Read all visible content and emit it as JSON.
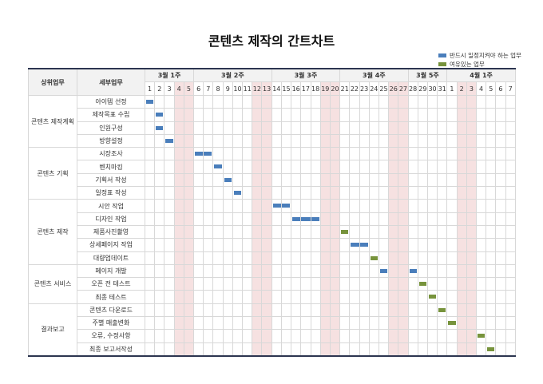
{
  "title": "콘텐츠 제작의 간트차트",
  "legend": [
    {
      "label": "반드시 일정지켜야 하는 업무",
      "type": "required",
      "color": "#4a7ebb"
    },
    {
      "label": "여유있는 업무",
      "type": "flexible",
      "color": "#77933c"
    }
  ],
  "chart_data": {
    "type": "gantt",
    "headers": {
      "group": "상위업무",
      "task": "세부업무"
    },
    "weeks": [
      {
        "label": "3월 1주",
        "days": 5
      },
      {
        "label": "3월 2주",
        "days": 8
      },
      {
        "label": "3월 3주",
        "days": 7
      },
      {
        "label": "3월 4주",
        "days": 7
      },
      {
        "label": "3월 5주",
        "days": 4
      },
      {
        "label": "4월 1주",
        "days": 7
      }
    ],
    "days": [
      "3/1",
      "3/2",
      "3/3",
      "3/4",
      "3/5",
      "3/6",
      "3/7",
      "3/8",
      "3/9",
      "3/10",
      "3/11",
      "3/12",
      "3/13",
      "3/14",
      "3/15",
      "3/16",
      "3/17",
      "3/18",
      "3/19",
      "3/20",
      "3/21",
      "3/22",
      "3/23",
      "3/24",
      "3/25",
      "3/26",
      "3/27",
      "3/28",
      "3/29",
      "3/30",
      "3/31",
      "4/1",
      "4/2",
      "4/3",
      "4/4",
      "4/5",
      "4/6",
      "4/7"
    ],
    "holidays": [
      "3/4",
      "3/5",
      "3/12",
      "3/13",
      "3/19",
      "3/20",
      "3/26",
      "3/27",
      "4/2",
      "4/3"
    ],
    "groups": [
      {
        "name": "콘텐츠 제작계획",
        "tasks": [
          {
            "name": "아이템 선정",
            "bars": [
              {
                "start": "3/1",
                "end": "3/1",
                "type": "required"
              }
            ]
          },
          {
            "name": "제작목표 수립",
            "bars": [
              {
                "start": "3/2",
                "end": "3/2",
                "type": "required"
              }
            ]
          },
          {
            "name": "인원구성",
            "bars": [
              {
                "start": "3/2",
                "end": "3/2",
                "type": "required"
              }
            ]
          },
          {
            "name": "방향설정",
            "bars": [
              {
                "start": "3/3",
                "end": "3/3",
                "type": "required"
              }
            ]
          }
        ]
      },
      {
        "name": "콘텐츠 기획",
        "tasks": [
          {
            "name": "시장조사",
            "bars": [
              {
                "start": "3/6",
                "end": "3/7",
                "type": "required"
              }
            ]
          },
          {
            "name": "벤치마킹",
            "bars": [
              {
                "start": "3/8",
                "end": "3/8",
                "type": "required"
              }
            ]
          },
          {
            "name": "기획서 작성",
            "bars": [
              {
                "start": "3/9",
                "end": "3/9",
                "type": "required"
              }
            ]
          },
          {
            "name": "일정표 작성",
            "bars": [
              {
                "start": "3/10",
                "end": "3/10",
                "type": "required"
              }
            ]
          }
        ]
      },
      {
        "name": "콘텐츠 제작",
        "tasks": [
          {
            "name": "시안 작업",
            "bars": [
              {
                "start": "3/14",
                "end": "3/15",
                "type": "required"
              }
            ]
          },
          {
            "name": "디자인 작업",
            "bars": [
              {
                "start": "3/16",
                "end": "3/18",
                "type": "required"
              }
            ]
          },
          {
            "name": "제품사진촬영",
            "bars": [
              {
                "start": "3/21",
                "end": "3/21",
                "type": "flexible"
              }
            ]
          },
          {
            "name": "상세페이지 작업",
            "bars": [
              {
                "start": "3/22",
                "end": "3/23",
                "type": "required"
              }
            ]
          },
          {
            "name": "대량업데이트",
            "bars": [
              {
                "start": "3/24",
                "end": "3/24",
                "type": "flexible"
              }
            ]
          }
        ]
      },
      {
        "name": "콘텐츠 서비스",
        "tasks": [
          {
            "name": "페이지 개발",
            "bars": [
              {
                "start": "3/25",
                "end": "3/25",
                "type": "required"
              },
              {
                "start": "3/28",
                "end": "3/28",
                "type": "required"
              }
            ]
          },
          {
            "name": "오픈 전 테스트",
            "bars": [
              {
                "start": "3/29",
                "end": "3/29",
                "type": "flexible"
              }
            ]
          },
          {
            "name": "최종 테스트",
            "bars": [
              {
                "start": "3/30",
                "end": "3/30",
                "type": "flexible"
              }
            ]
          }
        ]
      },
      {
        "name": "결과보고",
        "tasks": [
          {
            "name": "콘텐츠 다운로드",
            "bars": [
              {
                "start": "3/31",
                "end": "3/31",
                "type": "flexible"
              }
            ]
          },
          {
            "name": "주별 매출변화",
            "bars": [
              {
                "start": "4/1",
                "end": "4/1",
                "type": "flexible"
              }
            ]
          },
          {
            "name": "오류, 수정사항",
            "bars": [
              {
                "start": "4/4",
                "end": "4/4",
                "type": "flexible"
              }
            ]
          },
          {
            "name": "최종 보고서작성",
            "bars": [
              {
                "start": "4/5",
                "end": "4/5",
                "type": "flexible"
              }
            ]
          }
        ]
      }
    ]
  }
}
